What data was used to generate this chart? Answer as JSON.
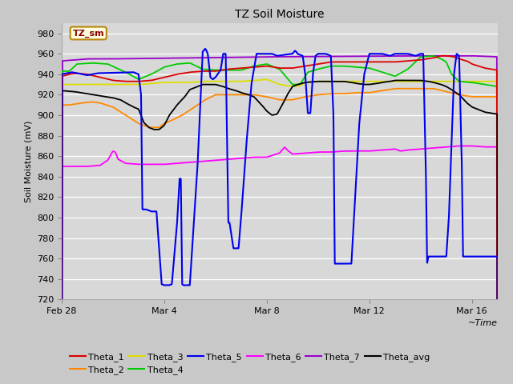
{
  "title": "TZ Soil Moisture",
  "xlabel": "~Time",
  "ylabel": "Soil Moisture (mV)",
  "ylim": [
    720,
    990
  ],
  "yticks": [
    720,
    740,
    760,
    780,
    800,
    820,
    840,
    860,
    880,
    900,
    920,
    940,
    960,
    980
  ],
  "plot_bg_color": "#d8d8d8",
  "grid_color": "#ffffff",
  "legend_label": "TZ_sm",
  "legend_text_color": "#8b0000",
  "legend_box_color": "#ffffe0",
  "legend_box_edge": "#b8860b",
  "colors": {
    "Theta_1": "#dd0000",
    "Theta_2": "#ff8800",
    "Theta_3": "#dddd00",
    "Theta_4": "#00cc00",
    "Theta_5": "#0000ee",
    "Theta_6": "#ff00ff",
    "Theta_7": "#9900cc",
    "Theta_avg": "#000000"
  },
  "xtick_labels": [
    "Feb 28",
    "Mar 4",
    "Mar 8",
    "Mar 12",
    "Mar 16"
  ],
  "xtick_positions": [
    0,
    4,
    8,
    12,
    16
  ]
}
